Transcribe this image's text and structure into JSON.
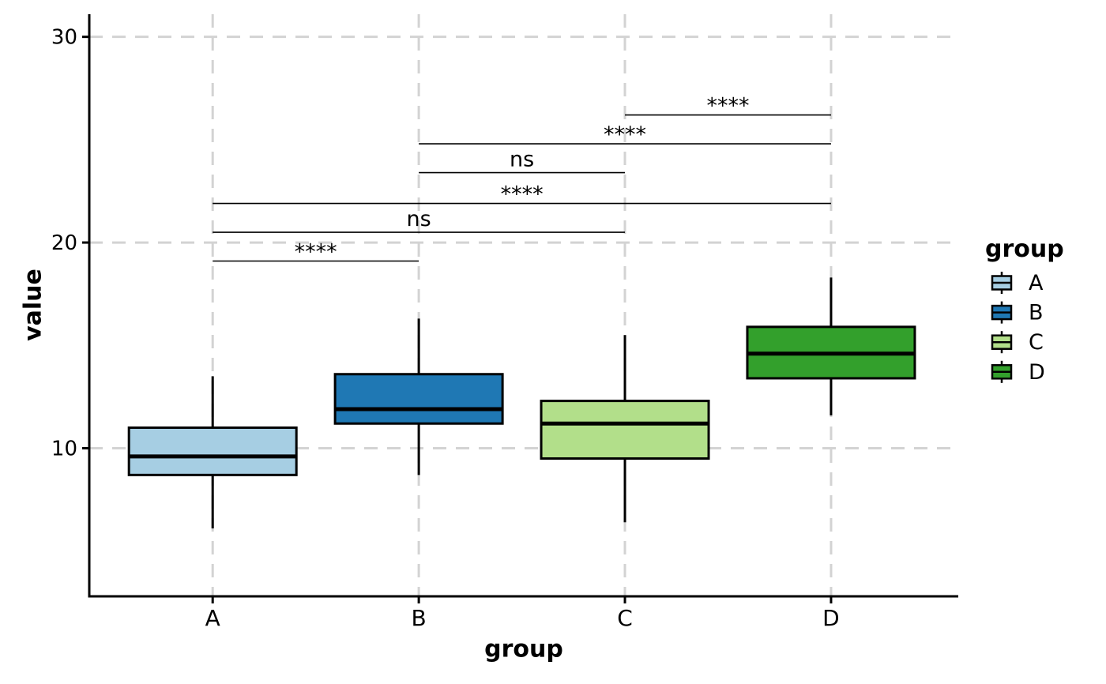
{
  "chart_data": {
    "type": "boxplot",
    "title": "",
    "xlabel": "group",
    "ylabel": "value",
    "categories": [
      "A",
      "B",
      "C",
      "D"
    ],
    "y_ticks": [
      10,
      20,
      30
    ],
    "ylim": [
      2.8,
      31.1
    ],
    "grid": {
      "show": true,
      "color": "#d3d3d3",
      "style": "dashed"
    },
    "series": [
      {
        "name": "A",
        "color": "#a6cee3",
        "whisker_low": 6.1,
        "q1": 8.7,
        "median": 9.6,
        "q3": 11.0,
        "whisker_high": 13.5
      },
      {
        "name": "B",
        "color": "#1f78b4",
        "whisker_low": 8.7,
        "q1": 11.2,
        "median": 11.9,
        "q3": 13.6,
        "whisker_high": 16.3
      },
      {
        "name": "C",
        "color": "#b2df8a",
        "whisker_low": 6.4,
        "q1": 9.5,
        "median": 11.2,
        "q3": 12.3,
        "whisker_high": 15.5
      },
      {
        "name": "D",
        "color": "#33a02c",
        "whisker_low": 11.6,
        "q1": 13.4,
        "median": 14.6,
        "q3": 15.9,
        "whisker_high": 18.3
      }
    ],
    "comparisons": [
      {
        "group1": "A",
        "group2": "B",
        "label": "****",
        "y": 19.1
      },
      {
        "group1": "A",
        "group2": "C",
        "label": "ns",
        "y": 20.5
      },
      {
        "group1": "A",
        "group2": "D",
        "label": "****",
        "y": 21.9
      },
      {
        "group1": "B",
        "group2": "C",
        "label": "ns",
        "y": 23.4
      },
      {
        "group1": "B",
        "group2": "D",
        "label": "****",
        "y": 24.8
      },
      {
        "group1": "C",
        "group2": "D",
        "label": "****",
        "y": 26.2
      }
    ],
    "legend": {
      "title": "group",
      "position": "right",
      "items": [
        {
          "label": "A",
          "color": "#a6cee3"
        },
        {
          "label": "B",
          "color": "#1f78b4"
        },
        {
          "label": "C",
          "color": "#b2df8a"
        },
        {
          "label": "D",
          "color": "#33a02c"
        }
      ]
    },
    "style": {
      "box_border_color": "#000000",
      "axis_color": "#000000",
      "bracket_color": "#000000"
    }
  }
}
